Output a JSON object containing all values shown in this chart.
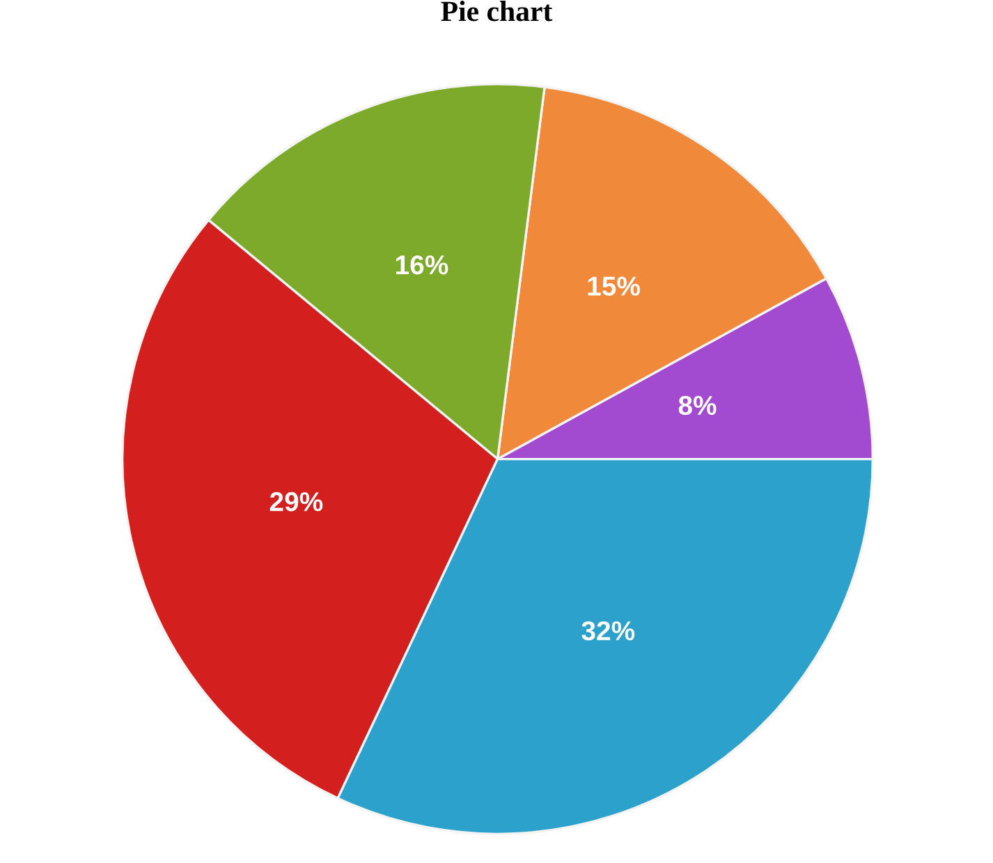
{
  "chart_data": {
    "type": "pie",
    "title": "Pie chart",
    "categories": [
      null,
      null,
      null,
      null,
      null
    ],
    "values": [
      8,
      15,
      16,
      29,
      32
    ],
    "colors": [
      "#a34bd0",
      "#f08a3a",
      "#7daa2a",
      "#d41f1f",
      "#2ba1cc"
    ],
    "value_labels": [
      "8%",
      "15%",
      "16%",
      "29%",
      "32%"
    ]
  }
}
